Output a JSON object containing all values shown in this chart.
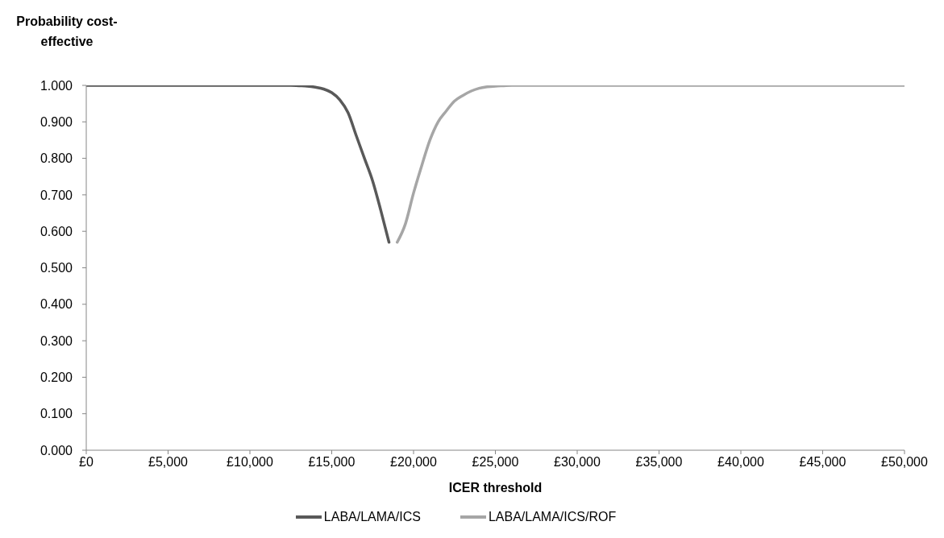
{
  "chart_data": {
    "type": "line",
    "xlabel": "ICER threshold",
    "ylabel": "Probability cost-effective",
    "series": [
      {
        "name": "LABA/LAMA/ICS",
        "color": "#595959",
        "x": [
          0,
          5000,
          10000,
          12000,
          12500,
          13000,
          13500,
          14000,
          14500,
          15000,
          15500,
          16000,
          16500,
          17000,
          17500,
          18000,
          18500
        ],
        "values": [
          1,
          1,
          1,
          1,
          1,
          0.999,
          0.998,
          0.995,
          0.99,
          0.98,
          0.96,
          0.925,
          0.862,
          0.8,
          0.738,
          0.657,
          0.57
        ]
      },
      {
        "name": "LABA/LAMA/ICS/ROF",
        "color": "#a6a6a6",
        "x": [
          19000,
          19500,
          20000,
          20500,
          21000,
          21500,
          22000,
          22500,
          23000,
          23500,
          24000,
          24500,
          25000,
          25500,
          26000,
          30000,
          40000,
          50000
        ],
        "values": [
          0.57,
          0.62,
          0.705,
          0.78,
          0.85,
          0.9,
          0.93,
          0.957,
          0.972,
          0.984,
          0.992,
          0.996,
          0.998,
          0.999,
          1,
          1,
          1,
          1
        ]
      }
    ],
    "xlim": [
      0,
      50000
    ],
    "xticks": [
      {
        "value": 0,
        "label": "£0"
      },
      {
        "value": 5000,
        "label": "£5,000"
      },
      {
        "value": 10000,
        "label": "£10,000"
      },
      {
        "value": 15000,
        "label": "£15,000"
      },
      {
        "value": 20000,
        "label": "£20,000"
      },
      {
        "value": 25000,
        "label": "£25,000"
      },
      {
        "value": 30000,
        "label": "£30,000"
      },
      {
        "value": 35000,
        "label": "£35,000"
      },
      {
        "value": 40000,
        "label": "£40,000"
      },
      {
        "value": 45000,
        "label": "£45,000"
      },
      {
        "value": 50000,
        "label": "£50,000"
      }
    ],
    "ylim": [
      0,
      1
    ],
    "yticks": [
      {
        "value": 0,
        "label": "0.000"
      },
      {
        "value": 0.1,
        "label": "0.100"
      },
      {
        "value": 0.2,
        "label": "0.200"
      },
      {
        "value": 0.3,
        "label": "0.300"
      },
      {
        "value": 0.4,
        "label": "0.400"
      },
      {
        "value": 0.5,
        "label": "0.500"
      },
      {
        "value": 0.6,
        "label": "0.600"
      },
      {
        "value": 0.7,
        "label": "0.700"
      },
      {
        "value": 0.8,
        "label": "0.800"
      },
      {
        "value": 0.9,
        "label": "0.900"
      },
      {
        "value": 1,
        "label": "1.000"
      }
    ],
    "legend": "bottom",
    "marker": "none"
  }
}
